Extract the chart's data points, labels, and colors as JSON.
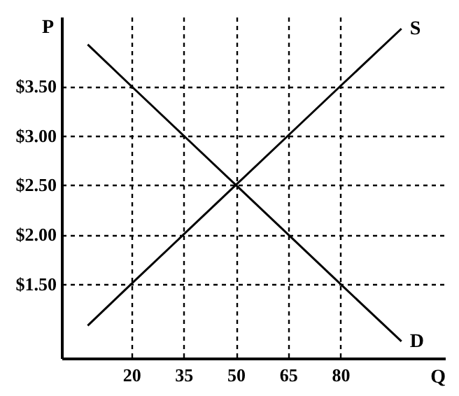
{
  "chart_data": {
    "type": "line",
    "xlabel": "Q",
    "ylabel": "P",
    "xlim": [
      0,
      110
    ],
    "ylim": [
      0.75,
      4.2
    ],
    "xticks": [
      20,
      35,
      50,
      65,
      80
    ],
    "yticks": [
      {
        "value": 1.5,
        "label": "$1.50"
      },
      {
        "value": 2.0,
        "label": "$2.00"
      },
      {
        "value": 2.5,
        "label": "$2.50"
      },
      {
        "value": 3.0,
        "label": "$3.00"
      },
      {
        "value": 3.5,
        "label": "$3.50"
      }
    ],
    "x": [
      7.5,
      20,
      35,
      50,
      65,
      80,
      97.5
    ],
    "series": [
      {
        "name": "S",
        "color": "#000000",
        "values": [
          1.08,
          1.5,
          2.0,
          2.5,
          3.0,
          3.5,
          4.08
        ]
      },
      {
        "name": "D",
        "color": "#000000",
        "values": [
          3.92,
          3.5,
          3.0,
          2.5,
          2.0,
          1.5,
          0.92
        ]
      }
    ],
    "grid": true,
    "marker": "none",
    "line_style": "solid"
  }
}
